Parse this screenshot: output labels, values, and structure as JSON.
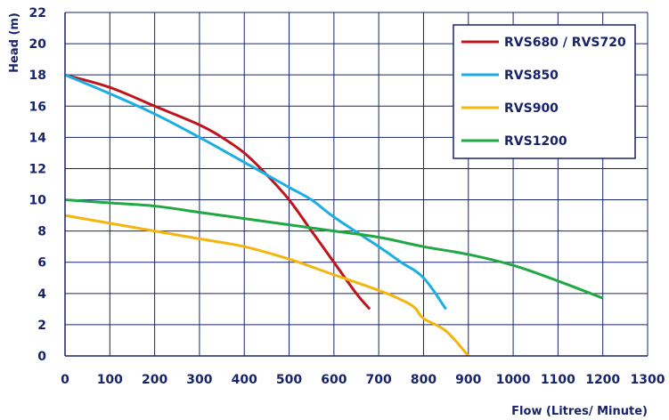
{
  "chart_data": {
    "type": "line",
    "title": "",
    "xlabel": "Flow (Litres/ Minute)",
    "ylabel": "Head (m)",
    "xlim": [
      0,
      1300
    ],
    "ylim": [
      0,
      22
    ],
    "x_ticks": [
      0,
      100,
      200,
      300,
      400,
      500,
      600,
      700,
      800,
      900,
      1000,
      1100,
      1200,
      1300
    ],
    "y_ticks": [
      0,
      2,
      4,
      6,
      8,
      10,
      12,
      14,
      16,
      18,
      20,
      22
    ],
    "x_tick_labels": [
      "0",
      "100",
      "200",
      "300",
      "400",
      "500",
      "600",
      "700",
      "800",
      "900",
      "1000",
      "1100",
      "1200",
      "1300"
    ],
    "y_tick_labels": [
      "0",
      "2",
      "4",
      "6",
      "8",
      "10",
      "12",
      "14",
      "16",
      "18",
      "20",
      "22"
    ],
    "grid": true,
    "legend_position": "top-right",
    "series": [
      {
        "name": "RVS680 / RVS720",
        "color": "#c0141c",
        "x": [
          0,
          100,
          200,
          300,
          350,
          400,
          450,
          500,
          550,
          600,
          650,
          680
        ],
        "y": [
          18,
          17.2,
          16,
          14.8,
          14,
          13,
          11.6,
          10,
          8,
          6,
          4,
          3
        ]
      },
      {
        "name": "RVS850",
        "color": "#1aaee5",
        "x": [
          0,
          100,
          200,
          300,
          400,
          450,
          500,
          550,
          600,
          700,
          750,
          800,
          850
        ],
        "y": [
          18,
          16.8,
          15.5,
          14,
          12.4,
          11.6,
          10.8,
          10,
          8.9,
          7,
          6,
          5,
          3
        ]
      },
      {
        "name": "RVS900",
        "color": "#f5b50f",
        "x": [
          0,
          100,
          200,
          300,
          400,
          500,
          600,
          700,
          750,
          780,
          800,
          850,
          900
        ],
        "y": [
          9,
          8.5,
          8,
          7.5,
          7,
          6.2,
          5.2,
          4.2,
          3.6,
          3.1,
          2.4,
          1.6,
          0
        ]
      },
      {
        "name": "RVS1200",
        "color": "#21a744",
        "x": [
          0,
          100,
          200,
          300,
          400,
          500,
          600,
          700,
          800,
          900,
          1000,
          1100,
          1200
        ],
        "y": [
          10,
          9.8,
          9.6,
          9.2,
          8.8,
          8.4,
          8,
          7.6,
          7,
          6.5,
          5.8,
          4.8,
          3.7
        ]
      }
    ]
  }
}
